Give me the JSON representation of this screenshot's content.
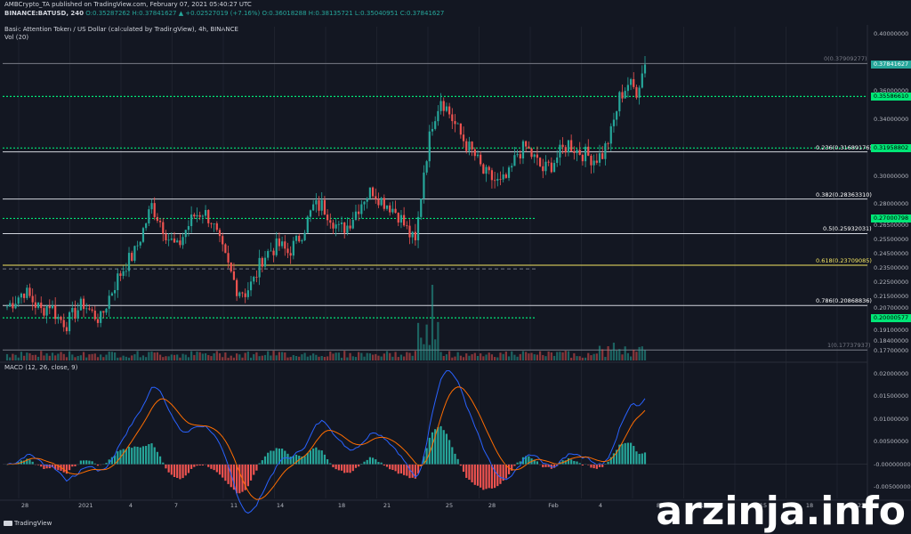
{
  "header": {
    "line1": "AMBCrypto_TA published on TradingView.com, February 07, 2021 05:40:27 UTC",
    "line2_symbol": "BINANCE:BATUSD, 240",
    "line2_ohlc": "O:0.35287262 H:0.37841627 ▲ +0.02527019 (+7.16%)  O:0.36018288  H:0.38135721  L:0.35040951  C:0.37841627",
    "title": "Basic Attention Token / US Dollar (calculated by TradingView), 4h, BINANCE",
    "vol": "Vol (20)",
    "macd": "MACD (12, 26, close, 9)"
  },
  "price_axis": [
    "0.40000000",
    "0.36000000",
    "0.34000000",
    "0.30000000",
    "0.28000000",
    "0.26500000",
    "0.25500000",
    "0.24500000",
    "0.23500000",
    "0.22500000",
    "0.21500000",
    "0.20700000",
    "0.19100000",
    "0.18400000",
    "0.17700000"
  ],
  "macd_axis": [
    "0.02000000",
    "0.01500000",
    "0.01000000",
    "0.00500000",
    "-0.00000000",
    "-0.00500000"
  ],
  "time_axis": [
    "28",
    "2021",
    "4",
    "7",
    "11",
    "14",
    "18",
    "21",
    "25",
    "28",
    "Feb",
    "4",
    "8",
    "11",
    "15",
    "18",
    "22"
  ],
  "fib_labels": [
    {
      "text": "0(0.37909277)",
      "color": "#787b86"
    },
    {
      "text": "0.236(0.31689176)",
      "color": "#ffffff"
    },
    {
      "text": "0.382(0.28363310)",
      "color": "#ffffff"
    },
    {
      "text": "0.5(0.25932031)",
      "color": "#ffffff"
    },
    {
      "text": "0.618(0.23709085)",
      "color": "#f5e663"
    },
    {
      "text": "0.786(0.20868836)",
      "color": "#ffffff"
    },
    {
      "text": "1(0.17737937)",
      "color": "#787b86"
    }
  ],
  "price_boxes": [
    {
      "text": "0.37841627",
      "bg": "#26a69a",
      "fg": "#ffffff"
    },
    {
      "text": "0.35586610",
      "bg": "#00e676",
      "fg": "#000000"
    },
    {
      "text": "0.31958802",
      "bg": "#00e676",
      "fg": "#000000"
    },
    {
      "text": "0.27000798",
      "bg": "#00e676",
      "fg": "#000000"
    },
    {
      "text": "0.20000577",
      "bg": "#00e676",
      "fg": "#000000"
    }
  ],
  "colors": {
    "up": "#26a69a",
    "down": "#ef5350",
    "macd": "#2962ff",
    "signal": "#ff6d00",
    "support": "#00e676"
  },
  "footer": {
    "brand": "TradingView",
    "watermark": "arzinja.info"
  },
  "chart_data": {
    "type": "candlestick",
    "title": "Basic Attention Token / US Dollar (calculated by TradingView), 4h, BINANCE",
    "interval": "4h",
    "close_series": [
      0.208,
      0.213,
      0.219,
      0.212,
      0.205,
      0.21,
      0.2,
      0.196,
      0.204,
      0.21,
      0.203,
      0.199,
      0.215,
      0.228,
      0.238,
      0.246,
      0.262,
      0.279,
      0.268,
      0.256,
      0.249,
      0.262,
      0.272,
      0.275,
      0.269,
      0.252,
      0.236,
      0.221,
      0.218,
      0.226,
      0.242,
      0.248,
      0.251,
      0.246,
      0.253,
      0.264,
      0.278,
      0.279,
      0.272,
      0.262,
      0.265,
      0.275,
      0.285,
      0.29,
      0.283,
      0.279,
      0.273,
      0.262,
      0.252,
      0.304,
      0.338,
      0.355,
      0.344,
      0.332,
      0.322,
      0.314,
      0.302,
      0.298,
      0.294,
      0.3,
      0.316,
      0.32,
      0.312,
      0.304,
      0.308,
      0.316,
      0.323,
      0.318,
      0.315,
      0.312,
      0.315,
      0.33,
      0.355,
      0.365,
      0.36,
      0.3784
    ],
    "fibonacci": [
      {
        "level": 0,
        "price": 0.37909277
      },
      {
        "level": 0.236,
        "price": 0.31689176
      },
      {
        "level": 0.382,
        "price": 0.2836331
      },
      {
        "level": 0.5,
        "price": 0.25932031
      },
      {
        "level": 0.618,
        "price": 0.23709085
      },
      {
        "level": 0.786,
        "price": 0.20868836
      },
      {
        "level": 1,
        "price": 0.17737937
      }
    ],
    "support_resistance": [
      0.3558661,
      0.31958802,
      0.27000798,
      0.20000577
    ],
    "last_price": 0.37841627,
    "ylim": [
      0.17,
      0.405
    ],
    "macd_ylim": [
      -0.0075,
      0.0215
    ]
  }
}
